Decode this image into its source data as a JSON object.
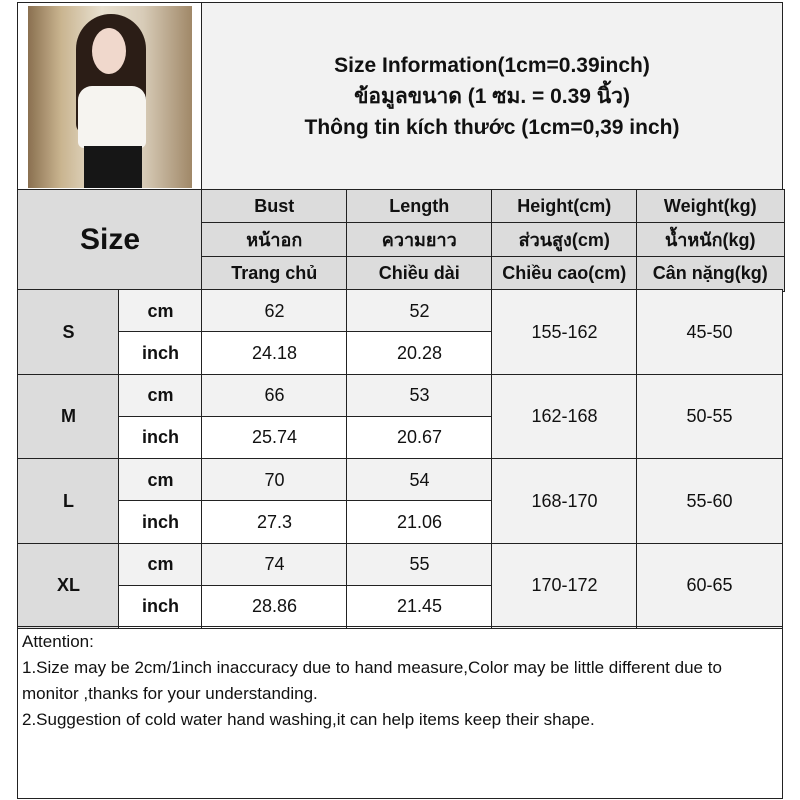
{
  "title_lines": [
    "Size Information(1cm=0.39inch)",
    "ข้อมูลขนาด (1 ซม. = 0.39 นิ้ว)",
    "Thông tin kích thước (1cm=0,39 inch)"
  ],
  "size_header": "Size",
  "columns": [
    [
      "Bust",
      "หน้าอก",
      "Trang chủ"
    ],
    [
      "Length",
      "ความยาว",
      "Chiều dài"
    ],
    [
      "Height(cm)",
      "ส่วนสูง(cm)",
      "Chiều cao(cm)"
    ],
    [
      "Weight(kg)",
      "น้ำหนัก(kg)",
      "Cân nặng(kg)"
    ]
  ],
  "unit_cm": "cm",
  "unit_inch": "inch",
  "rows": [
    {
      "size": "S",
      "bust_cm": "62",
      "length_cm": "52",
      "bust_inch": "24.18",
      "length_inch": "20.28",
      "height": "155-162",
      "weight": "45-50"
    },
    {
      "size": "M",
      "bust_cm": "66",
      "length_cm": "53",
      "bust_inch": "25.74",
      "length_inch": "20.67",
      "height": "162-168",
      "weight": "50-55"
    },
    {
      "size": "L",
      "bust_cm": "70",
      "length_cm": "54",
      "bust_inch": "27.3",
      "length_inch": "21.06",
      "height": "168-170",
      "weight": "55-60"
    },
    {
      "size": "XL",
      "bust_cm": "74",
      "length_cm": "55",
      "bust_inch": "28.86",
      "length_inch": "21.45",
      "height": "170-172",
      "weight": "60-65"
    }
  ],
  "attention": {
    "heading": "Attention:",
    "line1": "1.Size may be 2cm/1inch inaccuracy due to hand measure,Color may be little different due to monitor ,thanks for your understanding.",
    "line2": "2.Suggestion of cold water hand washing,it can help items keep their shape."
  }
}
